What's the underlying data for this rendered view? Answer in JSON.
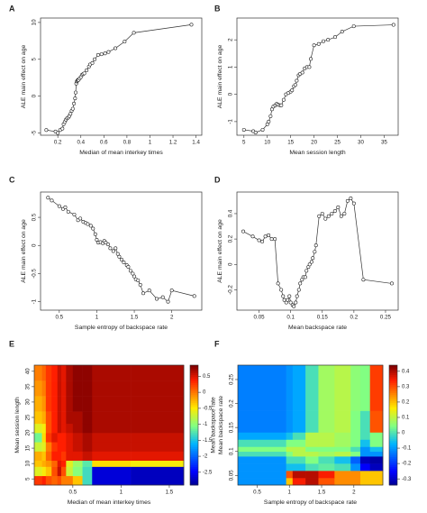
{
  "chart_data": [
    {
      "panel": "A",
      "type": "scatter",
      "xlabel": "Median of mean interkey times",
      "ylabel": "ALE main effect on age",
      "xticks": [
        0.2,
        0.4,
        0.6,
        0.8,
        1.0,
        1.2,
        1.4
      ],
      "yticks": [
        -5,
        0,
        5,
        10
      ],
      "xlim": [
        0.05,
        1.45
      ],
      "ylim": [
        -5.3,
        10.6
      ],
      "x": [
        0.1,
        0.18,
        0.2,
        0.22,
        0.24,
        0.25,
        0.26,
        0.27,
        0.28,
        0.29,
        0.3,
        0.31,
        0.32,
        0.33,
        0.34,
        0.35,
        0.355,
        0.36,
        0.365,
        0.37,
        0.375,
        0.38,
        0.39,
        0.4,
        0.41,
        0.42,
        0.43,
        0.45,
        0.47,
        0.48,
        0.5,
        0.52,
        0.55,
        0.58,
        0.61,
        0.64,
        0.7,
        0.78,
        0.86,
        1.36
      ],
      "y": [
        -4.6,
        -4.8,
        -5.0,
        -4.6,
        -4.4,
        -3.8,
        -3.5,
        -3.2,
        -3.0,
        -2.9,
        -2.7,
        -2.4,
        -2.0,
        -1.7,
        -1.0,
        -0.3,
        0.5,
        1.7,
        2.0,
        2.1,
        2.2,
        2.2,
        2.4,
        2.6,
        2.9,
        3.0,
        3.1,
        3.5,
        4.0,
        4.3,
        4.5,
        5.0,
        5.6,
        5.7,
        5.8,
        6.0,
        6.5,
        7.4,
        8.6,
        9.7
      ]
    },
    {
      "panel": "B",
      "type": "scatter",
      "xlabel": "Mean session length",
      "ylabel": "ALE main effect on age",
      "xticks": [
        5,
        10,
        15,
        20,
        25,
        30,
        35
      ],
      "yticks": [
        -1,
        0,
        1,
        2
      ],
      "xlim": [
        3.5,
        38
      ],
      "ylim": [
        -1.5,
        2.8
      ],
      "x": [
        5.0,
        7.0,
        7.5,
        9.0,
        10.0,
        10.3,
        10.7,
        11.0,
        11.3,
        11.7,
        12.0,
        12.3,
        12.7,
        13.0,
        13.5,
        14.0,
        14.5,
        15.0,
        15.3,
        15.7,
        16.0,
        16.3,
        16.7,
        17.0,
        17.5,
        18.0,
        18.5,
        19.0,
        19.3,
        20.0,
        21.0,
        22.0,
        23.0,
        24.5,
        26.0,
        28.5,
        37.0
      ],
      "y": [
        -1.3,
        -1.35,
        -1.4,
        -1.3,
        -1.1,
        -1.0,
        -0.8,
        -0.55,
        -0.45,
        -0.4,
        -0.35,
        -0.38,
        -0.4,
        -0.4,
        -0.2,
        0.0,
        0.05,
        0.1,
        0.15,
        0.3,
        0.35,
        0.5,
        0.7,
        0.75,
        0.8,
        0.95,
        1.0,
        1.0,
        1.3,
        1.8,
        1.85,
        1.95,
        2.0,
        2.1,
        2.3,
        2.5,
        2.55
      ]
    },
    {
      "panel": "C",
      "type": "scatter",
      "xlabel": "Sample entropy of backspace rate",
      "ylabel": "ALE main effect on age",
      "xticks": [
        0.5,
        1.0,
        1.5,
        2.0
      ],
      "yticks": [
        -1.0,
        -0.5,
        0.0,
        0.5
      ],
      "xlim": [
        0.25,
        2.4
      ],
      "ylim": [
        -1.15,
        0.95
      ],
      "x": [
        0.35,
        0.4,
        0.5,
        0.55,
        0.58,
        0.62,
        0.7,
        0.75,
        0.78,
        0.82,
        0.85,
        0.88,
        0.92,
        0.95,
        0.98,
        1.0,
        1.02,
        1.05,
        1.08,
        1.1,
        1.12,
        1.15,
        1.18,
        1.22,
        1.25,
        1.28,
        1.3,
        1.33,
        1.36,
        1.4,
        1.42,
        1.45,
        1.48,
        1.5,
        1.52,
        1.55,
        1.58,
        1.62,
        1.7,
        1.8,
        1.88,
        1.95,
        2.0,
        2.3
      ],
      "y": [
        0.85,
        0.8,
        0.7,
        0.65,
        0.68,
        0.6,
        0.55,
        0.45,
        0.48,
        0.42,
        0.4,
        0.38,
        0.35,
        0.3,
        0.2,
        0.1,
        0.05,
        0.06,
        0.04,
        0.08,
        0.05,
        0.02,
        -0.05,
        -0.1,
        -0.05,
        -0.15,
        -0.2,
        -0.25,
        -0.3,
        -0.35,
        -0.38,
        -0.45,
        -0.5,
        -0.55,
        -0.6,
        -0.62,
        -0.7,
        -0.85,
        -0.8,
        -0.95,
        -0.92,
        -1.0,
        -0.8,
        -0.9
      ]
    },
    {
      "panel": "D",
      "type": "scatter",
      "xlabel": "Mean backspace rate",
      "ylabel": "ALE main effect on age",
      "xticks": [
        0.05,
        0.1,
        0.15,
        0.2,
        0.25
      ],
      "yticks": [
        -0.2,
        0.0,
        0.2,
        0.4
      ],
      "xlim": [
        0.015,
        0.27
      ],
      "ylim": [
        -0.36,
        0.57
      ],
      "x": [
        0.025,
        0.04,
        0.05,
        0.055,
        0.06,
        0.065,
        0.07,
        0.075,
        0.08,
        0.085,
        0.088,
        0.09,
        0.093,
        0.095,
        0.098,
        0.1,
        0.103,
        0.105,
        0.108,
        0.11,
        0.113,
        0.115,
        0.118,
        0.12,
        0.123,
        0.125,
        0.128,
        0.13,
        0.133,
        0.135,
        0.138,
        0.14,
        0.145,
        0.15,
        0.155,
        0.16,
        0.165,
        0.17,
        0.175,
        0.18,
        0.185,
        0.19,
        0.195,
        0.2,
        0.215,
        0.26
      ],
      "y": [
        0.26,
        0.22,
        0.19,
        0.18,
        0.22,
        0.23,
        0.2,
        0.2,
        -0.15,
        -0.2,
        -0.25,
        -0.28,
        -0.3,
        -0.28,
        -0.25,
        -0.3,
        -0.32,
        -0.33,
        -0.3,
        -0.25,
        -0.2,
        -0.15,
        -0.12,
        -0.1,
        -0.1,
        -0.05,
        -0.02,
        0.0,
        0.02,
        0.05,
        0.1,
        0.15,
        0.38,
        0.4,
        0.36,
        0.38,
        0.4,
        0.42,
        0.45,
        0.38,
        0.4,
        0.5,
        0.52,
        0.48,
        -0.12,
        -0.15
      ]
    },
    {
      "panel": "E",
      "type": "heatmap",
      "xlabel": "Median of mean interkey times",
      "ylabel": "Mean session length",
      "colorbar_label": "Mean backspace rate",
      "xticks": [
        0.5,
        1.0,
        1.5
      ],
      "yticks": [
        5,
        10,
        15,
        20,
        25,
        30,
        35,
        40
      ],
      "colorbar_ticks": [
        0.5,
        0.0,
        -0.5,
        -1.0,
        -1.5,
        -2.0,
        -2.5
      ],
      "xlim": [
        0.1,
        1.65
      ],
      "ylim": [
        3,
        42
      ],
      "clim": [
        -2.9,
        0.85
      ],
      "x_edges": [
        0.1,
        0.18,
        0.22,
        0.28,
        0.34,
        0.38,
        0.43,
        0.5,
        0.6,
        0.7,
        1.1,
        1.65
      ],
      "y_edges": [
        3,
        6,
        9,
        11,
        14,
        17,
        20,
        23,
        27,
        32,
        37,
        42
      ],
      "values": [
        [
          0.3,
          0.4,
          0.2,
          0.1,
          0.2,
          0.0,
          0.0,
          -0.3,
          -1.3,
          -2.6,
          -2.7
        ],
        [
          -0.6,
          -0.5,
          -0.3,
          0.2,
          0.6,
          0.2,
          -0.7,
          -1.0,
          -1.3,
          -2.6,
          -2.7
        ],
        [
          -0.3,
          -0.2,
          -0.1,
          0.1,
          0.5,
          0.4,
          -0.6,
          -0.9,
          -1.2,
          -0.4,
          -0.5
        ],
        [
          -0.2,
          -0.3,
          0.1,
          0.4,
          0.4,
          0.3,
          0.5,
          0.5,
          0.6,
          0.5,
          0.5
        ],
        [
          -0.7,
          -0.6,
          0.0,
          0.3,
          0.4,
          0.4,
          0.5,
          0.6,
          0.7,
          0.6,
          0.6
        ],
        [
          -1.1,
          -0.4,
          0.3,
          0.5,
          0.4,
          0.4,
          0.5,
          0.6,
          0.7,
          0.6,
          0.6
        ],
        [
          -0.6,
          -0.5,
          0.2,
          0.4,
          0.6,
          0.5,
          0.6,
          0.7,
          0.8,
          0.7,
          0.7
        ],
        [
          -0.3,
          -0.2,
          0.2,
          0.4,
          0.6,
          0.5,
          0.7,
          0.7,
          0.8,
          0.7,
          0.7
        ],
        [
          -0.2,
          -0.1,
          0.3,
          0.4,
          0.6,
          0.5,
          0.7,
          0.8,
          0.8,
          0.7,
          0.7
        ],
        [
          -0.1,
          0.0,
          0.3,
          0.4,
          0.6,
          0.5,
          0.7,
          0.8,
          0.8,
          0.7,
          0.7
        ],
        [
          0.0,
          0.1,
          0.3,
          0.4,
          0.6,
          0.5,
          0.7,
          0.8,
          0.8,
          0.7,
          0.7
        ]
      ]
    },
    {
      "panel": "F",
      "type": "heatmap",
      "xlabel": "Sample entropy of backspace rate",
      "ylabel": "Mean backspace rate",
      "colorbar_label": "",
      "xticks": [
        0.5,
        1.0,
        1.5,
        2.0
      ],
      "yticks": [
        0.05,
        0.1,
        0.15,
        0.2,
        0.25
      ],
      "colorbar_ticks": [
        0.4,
        0.3,
        0.2,
        0.1,
        0.0,
        -0.1,
        -0.2,
        -0.3
      ],
      "xlim": [
        0.2,
        2.45
      ],
      "ylim": [
        0.03,
        0.28
      ],
      "clim": [
        -0.34,
        0.44
      ],
      "x_edges": [
        0.2,
        0.95,
        1.05,
        1.25,
        1.45,
        1.7,
        1.95,
        2.1,
        2.25,
        2.45
      ],
      "y_edges": [
        0.03,
        0.045,
        0.06,
        0.075,
        0.09,
        0.1,
        0.11,
        0.125,
        0.14,
        0.185,
        0.28
      ],
      "values": [
        [
          -0.1,
          0.2,
          0.35,
          0.4,
          0.3,
          0.25,
          0.25,
          0.2,
          0.2
        ],
        [
          -0.1,
          0.3,
          0.4,
          0.4,
          0.35,
          0.25,
          0.25,
          0.2,
          0.2
        ],
        [
          -0.1,
          -0.05,
          -0.05,
          0.0,
          0.02,
          0.0,
          -0.1,
          -0.25,
          -0.3
        ],
        [
          -0.1,
          0.0,
          0.0,
          0.05,
          0.0,
          -0.05,
          -0.15,
          -0.3,
          -0.32
        ],
        [
          0.0,
          0.05,
          0.1,
          0.1,
          0.08,
          0.1,
          0.05,
          -0.1,
          -0.1
        ],
        [
          0.05,
          0.1,
          0.1,
          0.05,
          0.05,
          0.05,
          0.0,
          -0.1,
          -0.05
        ],
        [
          0.0,
          0.05,
          0.05,
          0.1,
          0.1,
          0.08,
          0.05,
          -0.05,
          0.05
        ],
        [
          -0.08,
          -0.05,
          0.0,
          0.1,
          0.1,
          0.08,
          0.05,
          0.0,
          0.05
        ],
        [
          -0.12,
          -0.1,
          -0.08,
          0.0,
          0.08,
          0.1,
          0.05,
          0.0,
          0.3
        ],
        [
          -0.12,
          -0.1,
          -0.08,
          0.0,
          0.08,
          0.1,
          0.06,
          0.05,
          0.32
        ]
      ]
    }
  ]
}
